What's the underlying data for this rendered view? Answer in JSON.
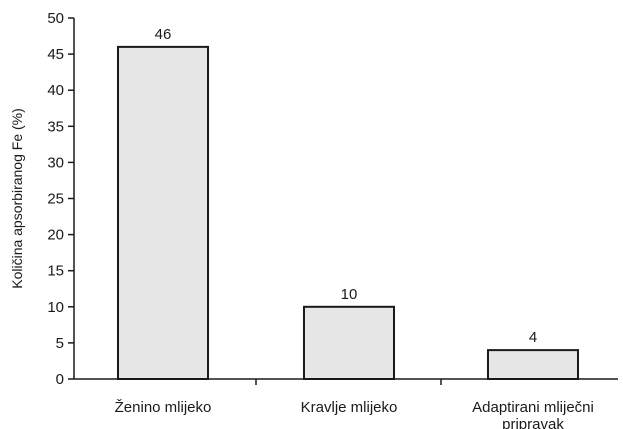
{
  "chart_data": {
    "type": "bar",
    "categories": [
      [
        "Ženino mlijeko"
      ],
      [
        "Kravlje mlijeko"
      ],
      [
        "Adaptirani mliječni",
        "pripravak"
      ]
    ],
    "values": [
      46,
      10,
      4
    ],
    "data_labels": [
      "46",
      "10",
      "4"
    ],
    "title": "",
    "xlabel": "",
    "ylabel": "Količina apsorbiranog Fe (%)",
    "ylim": [
      0,
      50
    ],
    "yticks": [
      0,
      5,
      10,
      15,
      20,
      25,
      30,
      35,
      40,
      45,
      50
    ],
    "grid": false,
    "legend": "none",
    "bar_fill": "#e6e6e6",
    "bar_stroke": "#1a1a1a"
  }
}
